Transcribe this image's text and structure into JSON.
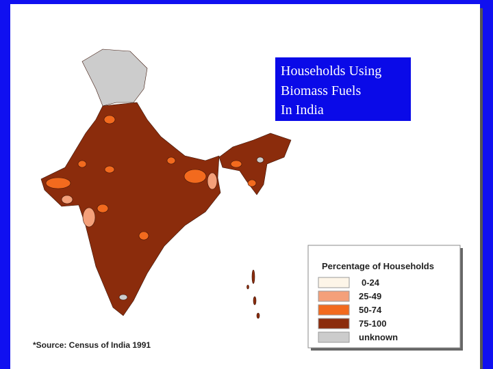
{
  "title_lines": [
    "Households Using",
    "Biomass Fuels",
    "In India"
  ],
  "legend": {
    "title": "Percentage of Households",
    "items": [
      {
        "label": "0-24",
        "color": "#fdf5e8"
      },
      {
        "label": "25-49",
        "color": "#f4a07a"
      },
      {
        "label": "50-74",
        "color": "#f26a1e"
      },
      {
        "label": "75-100",
        "color": "#8b2c0c"
      },
      {
        "label": "unknown",
        "color": "#cccccc"
      }
    ]
  },
  "source": "*Source:  Census of India 1991"
}
